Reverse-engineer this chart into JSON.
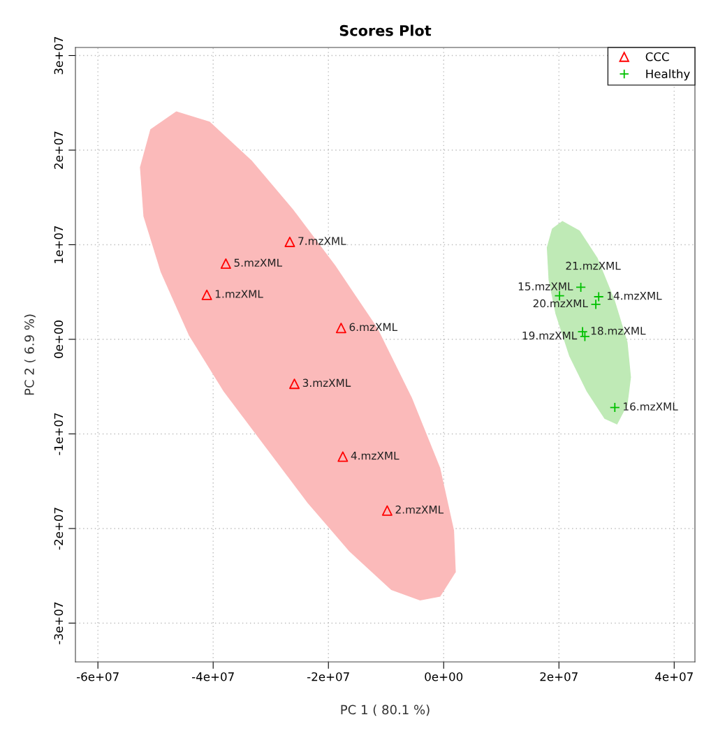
{
  "chart_data": {
    "type": "scatter",
    "title": "Scores Plot",
    "xlabel": "PC 1 ( 80.1 %)",
    "ylabel": "PC 2 ( 6.9 %)",
    "xlim": [
      -63900000.0,
      43600000.0
    ],
    "ylim": [
      -34100000.0,
      30850000.0
    ],
    "xticks": [
      {
        "value": -60000000.0,
        "label": "-6e+07"
      },
      {
        "value": -40000000.0,
        "label": "-4e+07"
      },
      {
        "value": -20000000.0,
        "label": "-2e+07"
      },
      {
        "value": 0,
        "label": "0e+00"
      },
      {
        "value": 20000000.0,
        "label": "2e+07"
      },
      {
        "value": 40000000.0,
        "label": "4e+07"
      }
    ],
    "yticks": [
      {
        "value": -30000000.0,
        "label": "-3e+07"
      },
      {
        "value": -20000000.0,
        "label": "-2e+07"
      },
      {
        "value": -10000000.0,
        "label": "-1e+07"
      },
      {
        "value": 0,
        "label": "0e+00"
      },
      {
        "value": 10000000.0,
        "label": "1e+07"
      },
      {
        "value": 20000000.0,
        "label": "2e+07"
      },
      {
        "value": 30000000.0,
        "label": "3e+07"
      }
    ],
    "grid": true,
    "legend": "top right",
    "series": [
      {
        "type": "area",
        "color": "#fbbaba",
        "x": [
          -46400000.0,
          -40600000.0,
          -33300000.0,
          -26100000.0,
          -18800000.0,
          -11500000.0,
          -5500000.0,
          -600000.0,
          1800000.0,
          2100000.0,
          -600000.0,
          -4100000.0,
          -9100000.0,
          -16400000.0,
          -23600000.0,
          -30900000.0,
          -38200000.0,
          -44200000.0,
          -49100000.0,
          -52100000.0,
          -52700000.0,
          -50900000.0
        ],
        "values": [
          24100000.0,
          23000000.0,
          18900000.0,
          13700000.0,
          7800000.0,
          1200000.0,
          -6200000.0,
          -13600000.0,
          -20200000.0,
          -24600000.0,
          -27200000.0,
          -27600000.0,
          -26500000.0,
          -22400000.0,
          -17300000.0,
          -11400000.0,
          -5500000.0,
          400000.0,
          7100000.0,
          13000000.0,
          18200000.0,
          22200000.0
        ]
      },
      {
        "type": "area",
        "color": "#bfeab6",
        "x": [
          20600000.0,
          23600000.0,
          26700000.0,
          29700000.0,
          31900000.0,
          32500000.0,
          31900000.0,
          30100000.0,
          27900000.0,
          24800000.0,
          21800000.0,
          19400000.0,
          18200000.0,
          17900000.0,
          18800000.0
        ],
        "values": [
          12500000.0,
          11500000.0,
          8600000.0,
          4100000.0,
          -300000.0,
          -4000000.0,
          -6900000.0,
          -9000000.0,
          -8400000.0,
          -5500000.0,
          -1800000.0,
          2700000.0,
          6300000.0,
          9700000.0,
          11700000.0
        ]
      },
      {
        "name": "CCC",
        "color": "#ff0000",
        "marker": "triangle",
        "x": [
          -41100000.0,
          -9800000.0,
          -25900000.0,
          -17500000.0,
          -37800000.0,
          -17800000.0,
          -26700000.0
        ],
        "values": [
          4700000.0,
          -18100000.0,
          -4700000.0,
          -12400000.0,
          8000000.0,
          1200000.0,
          10300000.0
        ]
      },
      {
        "name": "Healthy",
        "color": "#00c000",
        "marker": "cross",
        "x": [
          26900000.0,
          23800000.0,
          29700000.0,
          24100000.0,
          24500000.0,
          26400000.0,
          20100000.0
        ],
        "values": [
          4500000.0,
          5500000.0,
          -7200000.0,
          800000.0,
          300000.0,
          3700000.0,
          4600000.0
        ]
      }
    ],
    "annotations": [
      {
        "text": "1.mzXML",
        "x": -41100000.0,
        "y": 4700000.0
      },
      {
        "text": "2.mzXML",
        "x": -9800000.0,
        "y": -18100000.0
      },
      {
        "text": "3.mzXML",
        "x": -25900000.0,
        "y": -4700000.0
      },
      {
        "text": "4.mzXML",
        "x": -17500000.0,
        "y": -12400000.0
      },
      {
        "text": "5.mzXML",
        "x": -37800000.0,
        "y": 8000000.0
      },
      {
        "text": "6.mzXML",
        "x": -17800000.0,
        "y": 1200000.0
      },
      {
        "text": "7.mzXML",
        "x": -26700000.0,
        "y": 10300000.0
      },
      {
        "text": "14.mzXML",
        "x": 26900000.0,
        "y": 4500000.0
      },
      {
        "text": "15.mzXML",
        "x": 23800000.0,
        "y": 5500000.0
      },
      {
        "text": "16.mzXML",
        "x": 29700000.0,
        "y": -7200000.0
      },
      {
        "text": "18.mzXML",
        "x": 24100000.0,
        "y": 800000.0
      },
      {
        "text": "19.mzXML",
        "x": 24500000.0,
        "y": 300000.0
      },
      {
        "text": "20.mzXML",
        "x": 26400000.0,
        "y": 3700000.0
      },
      {
        "text": "21.mzXML",
        "x": 20100000.0,
        "y": 4600000.0
      }
    ]
  }
}
